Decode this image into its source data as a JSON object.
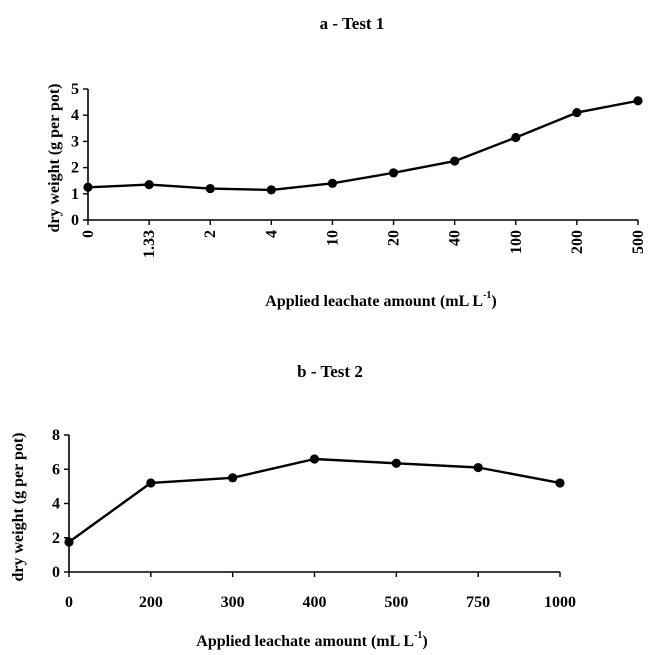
{
  "chart_data": [
    {
      "panel": "a",
      "type": "line",
      "title": "a - Test 1",
      "xlabel_main": "Applied leachate amount (mL L",
      "xlabel_sup": "-1",
      "xlabel_end": ")",
      "ylabel": "dry weight (g per pot)",
      "categories": [
        "0",
        "1.33",
        "2",
        "4",
        "10",
        "20",
        "40",
        "100",
        "200",
        "500"
      ],
      "values": [
        1.25,
        1.35,
        1.2,
        1.15,
        1.4,
        1.8,
        2.25,
        3.15,
        4.1,
        4.55
      ],
      "ylim": [
        0,
        5
      ],
      "yticks": [
        0,
        1,
        2,
        3,
        4,
        5
      ],
      "grid": false,
      "legend": "none"
    },
    {
      "panel": "b",
      "type": "line",
      "title": "b - Test 2",
      "xlabel_main": "Applied leachate amount (mL L",
      "xlabel_sup": "-1",
      "xlabel_end": ")",
      "ylabel": "dry weight (g per pot)",
      "categories": [
        "0",
        "200",
        "300",
        "400",
        "500",
        "750",
        "1000"
      ],
      "values": [
        1.75,
        5.2,
        5.5,
        6.6,
        6.35,
        6.1,
        5.2
      ],
      "ylim": [
        0,
        8
      ],
      "yticks": [
        0,
        2,
        4,
        6,
        8
      ],
      "grid": false,
      "legend": "none"
    }
  ]
}
